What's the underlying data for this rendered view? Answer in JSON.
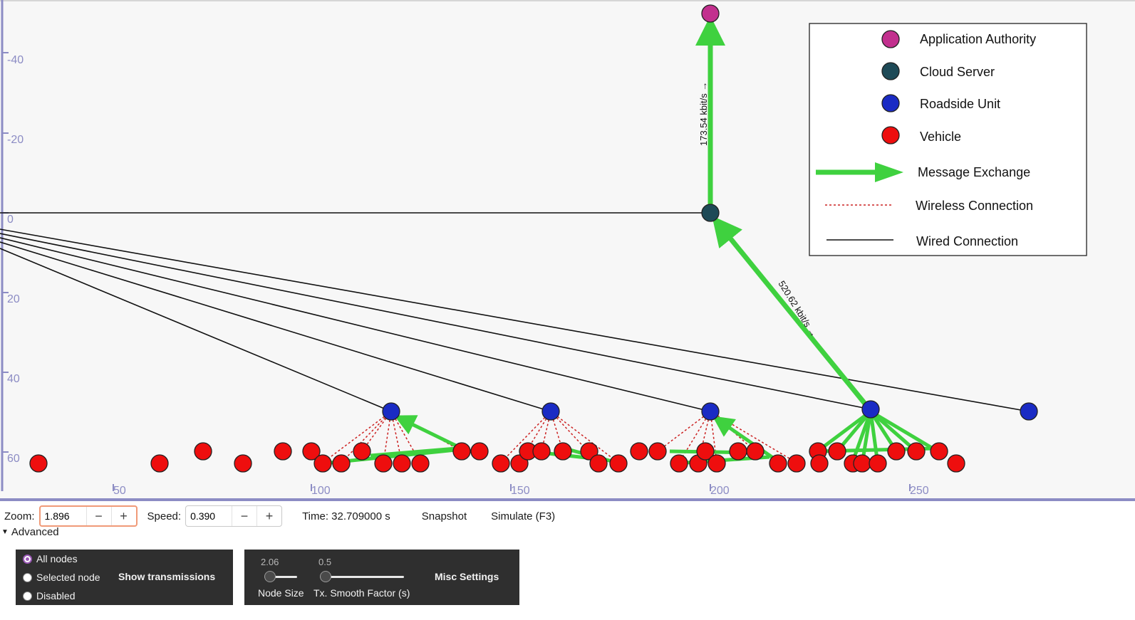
{
  "axes": {
    "y_ticks": [
      "-40",
      "-20",
      "0",
      "20",
      "40",
      "60"
    ],
    "x_ticks": [
      "50",
      "100",
      "150",
      "200",
      "250"
    ]
  },
  "edge_labels": {
    "authority_link": "173.54 kbit/s →",
    "cloud_link": "520.62 kbit/s →"
  },
  "legend": {
    "items": [
      {
        "label": "Application Authority",
        "kind": "node",
        "color": "#c2308e"
      },
      {
        "label": "Cloud Server",
        "kind": "node",
        "color": "#1e4a57"
      },
      {
        "label": "Roadside Unit",
        "kind": "node",
        "color": "#1a2bc4"
      },
      {
        "label": "Vehicle",
        "kind": "node",
        "color": "#ee0e0e"
      },
      {
        "label": "Message Exchange",
        "kind": "arrow",
        "color": "#3fd13f"
      },
      {
        "label": "Wireless Connection",
        "kind": "dotted",
        "color": "#cc2222"
      },
      {
        "label": "Wired Connection",
        "kind": "line",
        "color": "#111111"
      }
    ]
  },
  "toolbar": {
    "zoom_label": "Zoom:",
    "zoom_value": "1.896",
    "speed_label": "Speed:",
    "speed_value": "0.390",
    "minus": "−",
    "plus": "+",
    "time": "Time: 32.709000 s",
    "snapshot": "Snapshot",
    "simulate": "Simulate (F3)"
  },
  "advanced": {
    "label": "Advanced"
  },
  "transmissions": {
    "options": [
      "All nodes",
      "Selected node",
      "Disabled"
    ],
    "selected": "All nodes",
    "title": "Show transmissions"
  },
  "misc": {
    "node_size_value": "2.06",
    "node_size_label": "Node Size",
    "smooth_value": "0.5",
    "smooth_label": "Tx. Smooth Factor (s)",
    "title": "Misc Settings"
  },
  "colors": {
    "arrow": "#3fd13f",
    "wired": "#111111",
    "wireless": "#cc2222",
    "axis": "#8c8cc4"
  }
}
